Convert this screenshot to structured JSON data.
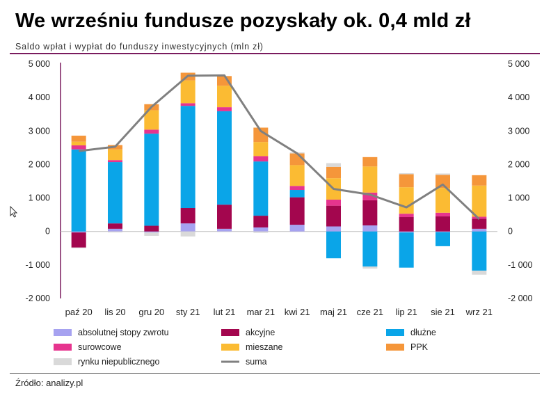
{
  "title": "We wrześniu fundusze pozyskały ok. 0,4 mld zł",
  "subtitle": "Saldo wpłat i wypłat do funduszy inwestycyjnych (mln zł)",
  "source": "Źródło: analizy.pl",
  "chart_data": {
    "type": "bar",
    "stacked": true,
    "title": "We wrześniu fundusze pozyskały ok. 0,4 mld zł",
    "subtitle": "Saldo wpłat i wypłat do funduszy inwestycyjnych (mln zł)",
    "categories": [
      "paź 20",
      "lis 20",
      "gru 20",
      "sty 21",
      "lut 21",
      "mar 21",
      "kwi 21",
      "maj 21",
      "cze 21",
      "lip 21",
      "sie 21",
      "wrz 21"
    ],
    "ylim": [
      -2000,
      5000
    ],
    "yticks": [
      -2000,
      -1000,
      0,
      1000,
      2000,
      3000,
      4000,
      5000
    ],
    "ytick_labels": [
      "-2 000",
      "-1 000",
      "0",
      "1 000",
      "2 000",
      "3 000",
      "4 000",
      "5 000"
    ],
    "secondary_axis": true,
    "grid": false,
    "legend_position": "bottom",
    "series": [
      {
        "name": "absolutnej stopy zwrotu",
        "color": "#a6a2f0",
        "values": [
          -30,
          80,
          -30,
          240,
          80,
          120,
          200,
          150,
          180,
          -30,
          -20,
          80
        ]
      },
      {
        "name": "akcyjne",
        "color": "#a3064e",
        "values": [
          -450,
          160,
          170,
          460,
          720,
          350,
          820,
          620,
          750,
          430,
          450,
          300
        ]
      },
      {
        "name": "dłużne",
        "color": "#0aa5e8",
        "values": [
          2450,
          1830,
          2750,
          3050,
          2790,
          1620,
          220,
          -800,
          -1050,
          -1050,
          -420,
          -1170
        ]
      },
      {
        "name": "surowcowe",
        "color": "#e6348e",
        "values": [
          120,
          60,
          120,
          80,
          120,
          160,
          120,
          180,
          230,
          100,
          110,
          60
        ]
      },
      {
        "name": "mieszane",
        "color": "#fbbb33",
        "values": [
          110,
          320,
          580,
          680,
          640,
          420,
          620,
          640,
          780,
          790,
          740,
          930
        ]
      },
      {
        "name": "PPK",
        "color": "#f5963a",
        "values": [
          180,
          130,
          180,
          230,
          290,
          430,
          350,
          340,
          280,
          390,
          390,
          310
        ]
      },
      {
        "name": "rynku niepublicznego",
        "color": "#d9d9d9",
        "values": [
          -20,
          -30,
          -100,
          -150,
          -20,
          -40,
          30,
          110,
          -60,
          30,
          40,
          -120
        ]
      }
    ],
    "line_series": {
      "name": "suma",
      "color": "#808080",
      "values": [
        2400,
        2530,
        3720,
        4650,
        4660,
        3000,
        2330,
        1270,
        1100,
        720,
        1400,
        370
      ]
    }
  }
}
